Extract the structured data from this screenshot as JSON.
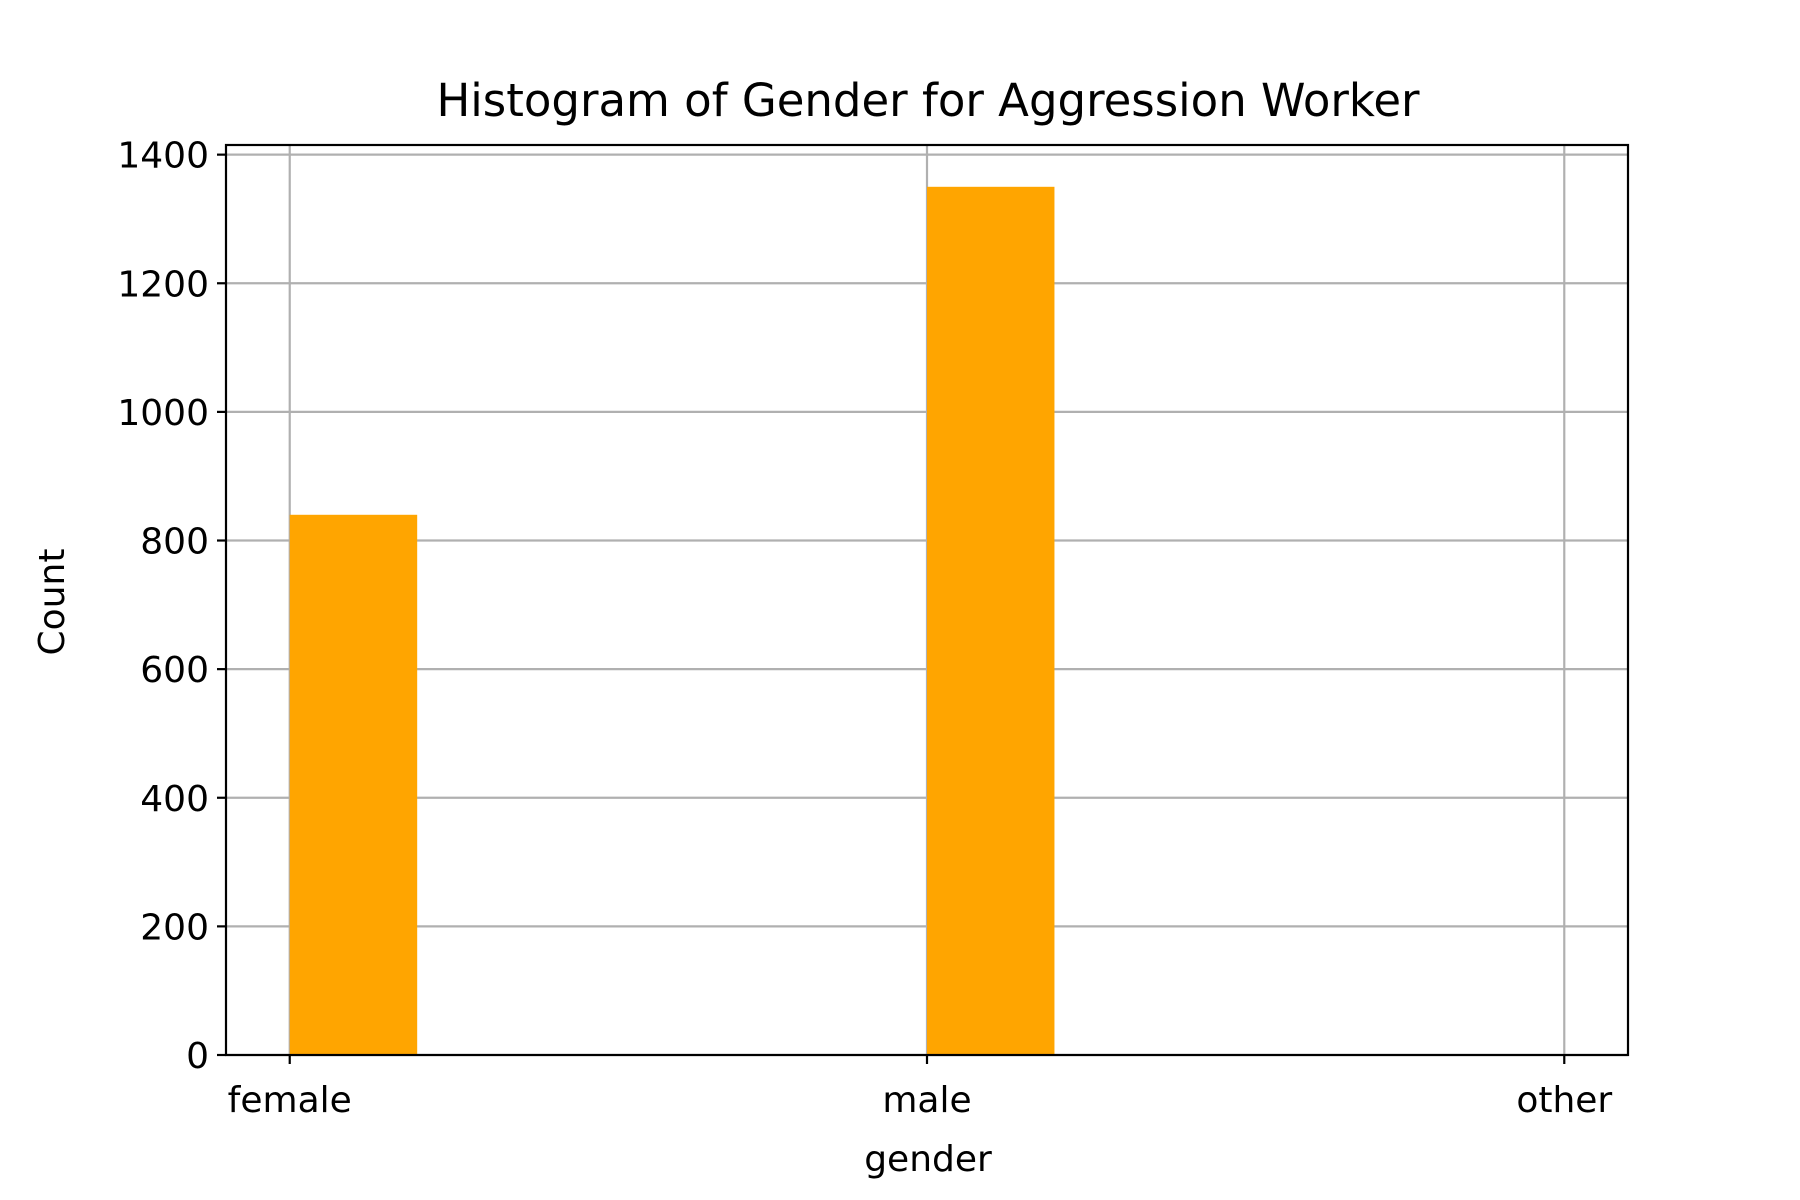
{
  "chart_data": {
    "type": "bar",
    "title": "Histogram of Gender for Aggression Worker",
    "xlabel": "gender",
    "ylabel": "Count",
    "categories": [
      "female",
      "male",
      "other"
    ],
    "bins": [
      {
        "start": 0.0,
        "end": 0.2,
        "value": 840
      },
      {
        "start": 1.0,
        "end": 1.2,
        "value": 1350
      },
      {
        "start": 1.8,
        "end": 2.0,
        "value": 0
      }
    ],
    "ylim": [
      0,
      1415
    ],
    "xlim": [
      -0.1,
      2.1
    ],
    "yticks": [
      0,
      200,
      400,
      600,
      800,
      1000,
      1200,
      1400
    ],
    "xticks": [
      0,
      1,
      2
    ],
    "grid": true,
    "colors": {
      "bar": "#FFA500",
      "grid": "#b0b0b0",
      "axis": "#000000",
      "background": "#ffffff"
    }
  }
}
